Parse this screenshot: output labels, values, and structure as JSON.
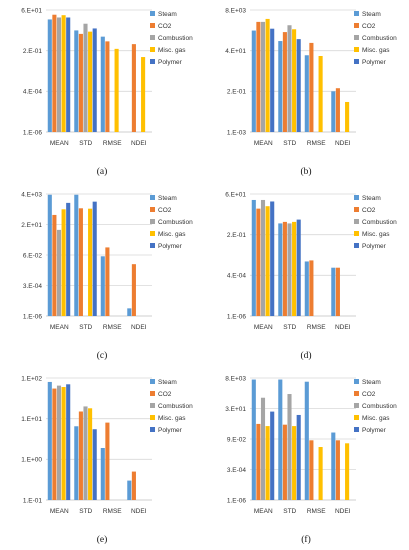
{
  "colors": {
    "Steam": "#5b9bd5",
    "CO2": "#ed7d31",
    "Combustion": "#a5a5a5",
    "Misc. gas": "#ffc000",
    "Polymer": "#4472c4",
    "grid": "#d9d9d9",
    "axis": "#bfbfbf"
  },
  "chart_data": [
    {
      "type": "bar",
      "scale": "log",
      "caption": "(a)",
      "categories": [
        "MEAN",
        "STD",
        "RMSE",
        "NDEI"
      ],
      "yticks": [
        "6.E+01",
        "2.E-01",
        "4.E-04",
        "1.E-06"
      ],
      "ylim": [
        1e-06,
        60
      ],
      "legend": [
        "Steam",
        "CO2",
        "Combustion",
        "Misc. gas",
        "Polymer"
      ],
      "series": [
        {
          "name": "Steam",
          "values": [
            15,
            3,
            1.2,
            null
          ]
        },
        {
          "name": "CO2",
          "values": [
            30,
            1.8,
            0.6,
            0.4
          ]
        },
        {
          "name": "Combustion",
          "values": [
            20,
            8,
            null,
            null
          ]
        },
        {
          "name": "Misc. gas",
          "values": [
            28,
            2.5,
            0.2,
            0.06
          ]
        },
        {
          "name": "Polymer",
          "values": [
            20,
            4,
            null,
            null
          ]
        }
      ]
    },
    {
      "type": "bar",
      "scale": "log",
      "caption": "(b)",
      "categories": [
        "MEAN",
        "STD",
        "RMSE",
        "NDEI"
      ],
      "yticks": [
        "8.E+03",
        "4.E+01",
        "2.E-01",
        "1.E-03"
      ],
      "ylim": [
        0.001,
        8000
      ],
      "legend": [
        "Steam",
        "CO2",
        "Combustion",
        "Misc. gas",
        "Polymer"
      ],
      "series": [
        {
          "name": "Steam",
          "values": [
            550,
            140,
            22,
            0.2
          ]
        },
        {
          "name": "CO2",
          "values": [
            1700,
            450,
            110,
            0.3
          ]
        },
        {
          "name": "Combustion",
          "values": [
            1700,
            1100,
            null,
            null
          ]
        },
        {
          "name": "Misc. gas",
          "values": [
            2500,
            650,
            20,
            0.05
          ]
        },
        {
          "name": "Polymer",
          "values": [
            700,
            180,
            null,
            null
          ]
        }
      ]
    },
    {
      "type": "bar",
      "scale": "log",
      "caption": "(c)",
      "categories": [
        "MEAN",
        "STD",
        "RMSE",
        "NDEI"
      ],
      "yticks": [
        "4.E+03",
        "2.E+01",
        "6.E-02",
        "3.E-04",
        "1.E-06"
      ],
      "ylim": [
        1e-06,
        4000
      ],
      "legend": [
        "Steam",
        "CO2",
        "Combustion",
        "Misc. gas",
        "Polymer"
      ],
      "series": [
        {
          "name": "Steam",
          "values": [
            3500,
            3500,
            0.05,
            4e-06
          ]
        },
        {
          "name": "CO2",
          "values": [
            90,
            300,
            0.25,
            0.012
          ]
        },
        {
          "name": "Combustion",
          "values": [
            6,
            null,
            null,
            null
          ]
        },
        {
          "name": "Misc. gas",
          "values": [
            250,
            280,
            null,
            null
          ]
        },
        {
          "name": "Polymer",
          "values": [
            800,
            1000,
            null,
            null
          ]
        }
      ]
    },
    {
      "type": "bar",
      "scale": "log",
      "caption": "(d)",
      "categories": [
        "MEAN",
        "STD",
        "RMSE",
        "NDEI"
      ],
      "yticks": [
        "6.E+01",
        "2.E-01",
        "4.E-04",
        "1.E-06"
      ],
      "ylim": [
        1e-06,
        60
      ],
      "legend": [
        "Steam",
        "CO2",
        "Combustion",
        "Misc. gas",
        "Polymer"
      ],
      "series": [
        {
          "name": "Steam",
          "values": [
            25,
            0.8,
            0.003,
            0.0012
          ]
        },
        {
          "name": "CO2",
          "values": [
            7,
            1,
            0.0035,
            0.0012
          ]
        },
        {
          "name": "Combustion",
          "values": [
            25,
            0.8,
            null,
            null
          ]
        },
        {
          "name": "Misc. gas",
          "values": [
            10,
            1,
            null,
            null
          ]
        },
        {
          "name": "Polymer",
          "values": [
            20,
            1.4,
            null,
            null
          ]
        }
      ]
    },
    {
      "type": "bar",
      "scale": "log",
      "caption": "(e)",
      "categories": [
        "MEAN",
        "STD",
        "RMSE",
        "NDEI"
      ],
      "yticks": [
        "1.E+02",
        "1.E+01",
        "1.E+00",
        "1.E-01"
      ],
      "ylim": [
        0.1,
        100
      ],
      "legend": [
        "Steam",
        "CO2",
        "Combustion",
        "Misc. gas",
        "Polymer"
      ],
      "series": [
        {
          "name": "Steam",
          "values": [
            80,
            6.5,
            1.9,
            0.3
          ]
        },
        {
          "name": "CO2",
          "values": [
            55,
            15,
            8,
            0.5
          ]
        },
        {
          "name": "Combustion",
          "values": [
            65,
            20,
            null,
            null
          ]
        },
        {
          "name": "Misc. gas",
          "values": [
            60,
            18,
            null,
            null
          ]
        },
        {
          "name": "Polymer",
          "values": [
            70,
            5.5,
            null,
            null
          ]
        }
      ]
    },
    {
      "type": "bar",
      "scale": "log",
      "caption": "(f)",
      "categories": [
        "MEAN",
        "STD",
        "RMSE",
        "NDEI"
      ],
      "yticks": [
        "8.E+03",
        "3.E+01",
        "9.E-02",
        "3.E-04",
        "1.E-06"
      ],
      "ylim": [
        1e-06,
        8000
      ],
      "legend": [
        "Steam",
        "CO2",
        "Combustion",
        "Misc. gas",
        "Polymer"
      ],
      "series": [
        {
          "name": "Steam",
          "values": [
            6000,
            6000,
            4000,
            0.3
          ]
        },
        {
          "name": "CO2",
          "values": [
            1.5,
            1.3,
            0.07,
            0.07
          ]
        },
        {
          "name": "Combustion",
          "values": [
            200,
            400,
            null,
            null
          ]
        },
        {
          "name": "Misc. gas",
          "values": [
            1,
            1,
            0.02,
            0.04
          ]
        },
        {
          "name": "Polymer",
          "values": [
            15,
            8,
            null,
            null
          ]
        }
      ]
    }
  ]
}
